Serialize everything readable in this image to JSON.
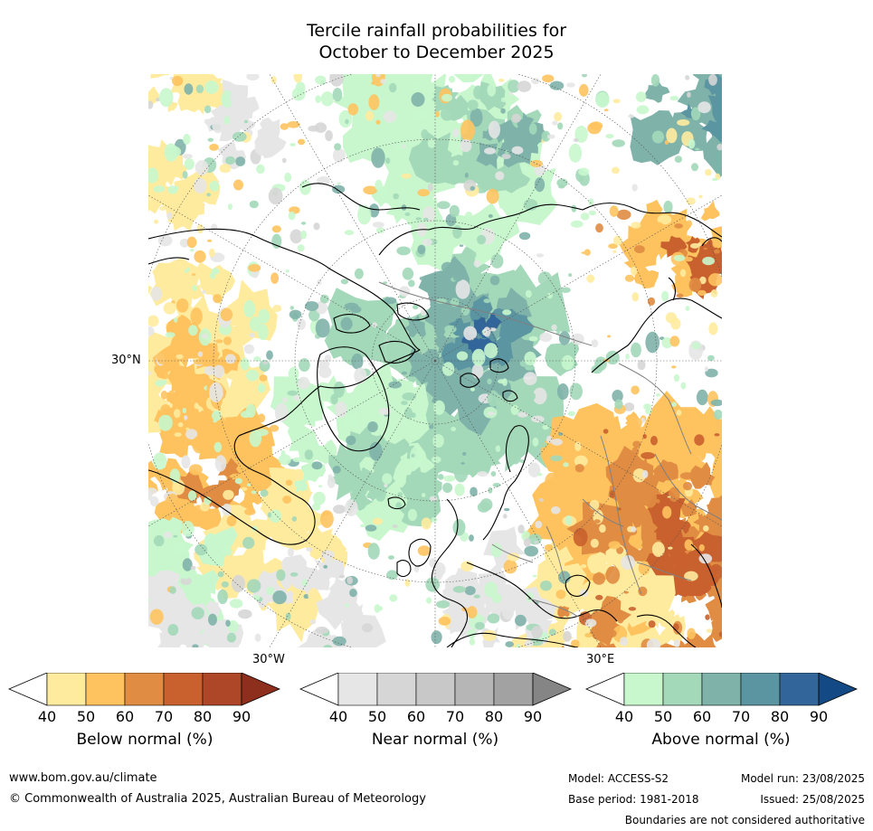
{
  "title": {
    "line1": "Tercile rainfall probabilities for",
    "line2": "October to December 2025"
  },
  "map": {
    "lat_label": "30°N",
    "lon_left_label": "30°W",
    "lon_right_label": "30°E",
    "colors": {
      "below": [
        "#ffeb9e",
        "#fec35f",
        "#e08c42",
        "#c9612e",
        "#ae4628",
        "#8e2e1c"
      ],
      "near": [
        "#e6e6e6",
        "#d6d6d6",
        "#c8c8c8",
        "#b6b6b6",
        "#a2a2a2",
        "#858585"
      ],
      "above": [
        "#c8f7cd",
        "#a3d8b9",
        "#7fb3aa",
        "#5b95a1",
        "#32669a",
        "#134a86"
      ],
      "coast": "#000000",
      "borders": "#808080",
      "graticule": "#555555"
    }
  },
  "colorbars": [
    {
      "id": "below",
      "label": "Below normal (%)",
      "ticks": [
        "40",
        "50",
        "60",
        "70",
        "80",
        "90"
      ],
      "colors": [
        "#ffeb9e",
        "#fec35f",
        "#e08c42",
        "#c9612e",
        "#ae4628",
        "#8e2e1c"
      ]
    },
    {
      "id": "near",
      "label": "Near normal (%)",
      "ticks": [
        "40",
        "50",
        "60",
        "70",
        "80",
        "90"
      ],
      "colors": [
        "#e6e6e6",
        "#d6d6d6",
        "#c8c8c8",
        "#b6b6b6",
        "#a2a2a2",
        "#858585"
      ]
    },
    {
      "id": "above",
      "label": "Above normal (%)",
      "ticks": [
        "40",
        "50",
        "60",
        "70",
        "80",
        "90"
      ],
      "colors": [
        "#c8f7cd",
        "#a3d8b9",
        "#7fb3aa",
        "#5b95a1",
        "#32669a",
        "#134a86"
      ]
    }
  ],
  "footer": {
    "website": "www.bom.gov.au/climate",
    "copyright": "© Commonwealth of Australia 2025, Australian Bureau of Meteorology",
    "model": "Model: ACCESS-S2",
    "base_period": "Base period: 1981-2018",
    "model_run": "Model run: 23/08/2025",
    "issued": "Issued: 25/08/2025",
    "disclaimer": "Boundaries are not considered authoritative"
  }
}
